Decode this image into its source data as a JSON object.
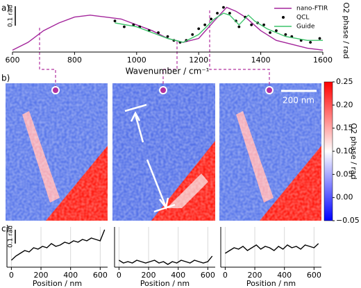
{
  "chart_data": [
    {
      "type": "line",
      "label": "a)",
      "xlabel": "Wavenumber / cm⁻¹",
      "ylabel": "O2 phase / rad",
      "scale_bar": {
        "value": 0.1,
        "label": "0.1 rad"
      },
      "xlim": [
        600,
        1600
      ],
      "ylim": [
        0,
        0.25
      ],
      "xticks": [
        600,
        800,
        1000,
        1200,
        1400,
        1600
      ],
      "legend": "upper right",
      "series": [
        {
          "name": "nano-FTIR",
          "color": "#a3259b",
          "style": "line",
          "x": [
            600,
            650,
            700,
            750,
            800,
            850,
            900,
            950,
            1000,
            1050,
            1100,
            1150,
            1200,
            1250,
            1290,
            1320,
            1350,
            1400,
            1450,
            1500,
            1550,
            1600
          ],
          "values": [
            0.01,
            0.05,
            0.11,
            0.15,
            0.18,
            0.19,
            0.18,
            0.17,
            0.14,
            0.11,
            0.07,
            0.05,
            0.07,
            0.16,
            0.23,
            0.21,
            0.18,
            0.11,
            0.06,
            0.04,
            0.02,
            0.01
          ]
        },
        {
          "name": "QCL",
          "color": "#000000",
          "style": "points",
          "x": [
            930,
            960,
            990,
            1010,
            1040,
            1070,
            1100,
            1120,
            1140,
            1160,
            1180,
            1200,
            1220,
            1240,
            1260,
            1280,
            1300,
            1320,
            1330,
            1350,
            1370,
            1390,
            1410,
            1430,
            1450,
            1480,
            1500,
            1530,
            1560,
            1590
          ],
          "values": [
            0.16,
            0.13,
            0.14,
            0.13,
            0.11,
            0.1,
            0.08,
            0.06,
            0.05,
            0.06,
            0.09,
            0.12,
            0.14,
            0.17,
            0.2,
            0.23,
            0.2,
            0.16,
            0.13,
            0.18,
            0.14,
            0.15,
            0.14,
            0.1,
            0.11,
            0.09,
            0.08,
            0.06,
            0.05,
            0.07
          ]
        },
        {
          "name": "Guide",
          "color": "#3cc46a",
          "style": "line",
          "x": [
            930,
            1000,
            1050,
            1100,
            1150,
            1200,
            1250,
            1280,
            1300,
            1330,
            1360,
            1380,
            1420,
            1480,
            1550,
            1600
          ],
          "values": [
            0.15,
            0.13,
            0.1,
            0.07,
            0.05,
            0.09,
            0.17,
            0.2,
            0.19,
            0.14,
            0.19,
            0.16,
            0.12,
            0.08,
            0.06,
            0.06
          ]
        }
      ]
    },
    {
      "type": "heatmap",
      "label": "b)",
      "colorbar_label": "O2 phase / rad",
      "scale_bar": "200 nm",
      "clim": [
        -0.05,
        0.25
      ],
      "colors": [
        "#0000ff",
        "#ffffff",
        "#ff0000"
      ],
      "cticks": [
        {
          "value": -0.05,
          "label": "−0.05"
        },
        {
          "value": 0,
          "label": "0.00"
        },
        {
          "value": 0.05,
          "label": "0.05"
        },
        {
          "value": 0.1,
          "label": "0.10"
        },
        {
          "value": 0.15,
          "label": "0.15"
        },
        {
          "value": 0.2,
          "label": "0.20"
        },
        {
          "value": 0.25,
          "label": "0.25"
        }
      ]
    },
    {
      "type": "line",
      "label": "c)",
      "xlabel": "Position / nm",
      "scale_bar": {
        "value": 0.1,
        "label": "0.1 rad"
      },
      "xlim": [
        -30,
        650
      ],
      "ylim": [
        0,
        0.29
      ],
      "xticks": [
        0,
        200,
        400,
        600
      ],
      "grid": "x",
      "series": [
        {
          "color": "#000000",
          "style": "line",
          "x": [
            0,
            30,
            60,
            90,
            120,
            150,
            180,
            210,
            240,
            270,
            300,
            330,
            360,
            390,
            420,
            450,
            480,
            510,
            540,
            570,
            600,
            630
          ],
          "values": [
            0.05,
            0.08,
            0.1,
            0.12,
            0.11,
            0.14,
            0.13,
            0.15,
            0.14,
            0.17,
            0.15,
            0.16,
            0.18,
            0.17,
            0.19,
            0.18,
            0.2,
            0.19,
            0.21,
            0.2,
            0.19,
            0.27
          ]
        }
      ]
    },
    {
      "type": "line",
      "xlabel": "Position / nm",
      "xlim": [
        -30,
        650
      ],
      "ylim": [
        0,
        0.29
      ],
      "xticks": [
        0,
        200,
        400,
        600
      ],
      "grid": "x",
      "series": [
        {
          "color": "#000000",
          "style": "line",
          "x": [
            0,
            30,
            60,
            90,
            120,
            150,
            180,
            210,
            240,
            270,
            300,
            330,
            360,
            390,
            420,
            450,
            480,
            510,
            540,
            570,
            600,
            630
          ],
          "values": [
            0.05,
            0.03,
            0.04,
            0.03,
            0.05,
            0.04,
            0.03,
            0.04,
            0.05,
            0.03,
            0.04,
            0.02,
            0.04,
            0.03,
            0.05,
            0.04,
            0.03,
            0.05,
            0.04,
            0.03,
            0.04,
            0.08
          ]
        }
      ]
    },
    {
      "type": "line",
      "xlabel": "Position / nm",
      "xlim": [
        -30,
        650
      ],
      "ylim": [
        0,
        0.29
      ],
      "xticks": [
        0,
        200,
        400,
        600
      ],
      "grid": "x",
      "series": [
        {
          "color": "#000000",
          "style": "line",
          "x": [
            0,
            30,
            60,
            90,
            120,
            150,
            180,
            210,
            240,
            270,
            300,
            330,
            360,
            390,
            420,
            450,
            480,
            510,
            540,
            570,
            600,
            630
          ],
          "values": [
            0.1,
            0.12,
            0.14,
            0.13,
            0.15,
            0.12,
            0.14,
            0.16,
            0.13,
            0.15,
            0.14,
            0.12,
            0.15,
            0.13,
            0.16,
            0.14,
            0.15,
            0.13,
            0.16,
            0.15,
            0.14,
            0.17
          ]
        }
      ]
    }
  ]
}
